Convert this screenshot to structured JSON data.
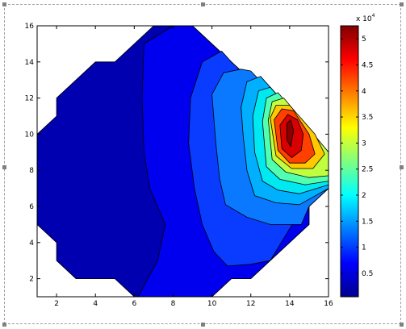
{
  "chart_data": {
    "type": "contourf",
    "title": "",
    "xlabel": "",
    "ylabel": "",
    "xlim": [
      1,
      16
    ],
    "ylim": [
      1,
      16
    ],
    "x_ticks": [
      2,
      4,
      6,
      8,
      10,
      12,
      14,
      16
    ],
    "y_ticks": [
      2,
      4,
      6,
      8,
      10,
      12,
      14,
      16
    ],
    "colormap": "jet",
    "colorbar": {
      "multiplier_label": "x 10",
      "multiplier_exponent": "4",
      "ticks": [
        0.5,
        1,
        1.5,
        2,
        2.5,
        3,
        3.5,
        4,
        4.5,
        5
      ],
      "range": [
        0.05,
        5.25
      ]
    },
    "domain_outline": [
      [
        1,
        10
      ],
      [
        2,
        11
      ],
      [
        2,
        12
      ],
      [
        4,
        14
      ],
      [
        5,
        14
      ],
      [
        7,
        16
      ],
      [
        9,
        16
      ],
      [
        10,
        15
      ],
      [
        11,
        14
      ],
      [
        16,
        9
      ],
      [
        16,
        7
      ],
      [
        15,
        6
      ],
      [
        15,
        5
      ],
      [
        12,
        2
      ],
      [
        11,
        2
      ],
      [
        10,
        1
      ],
      [
        6,
        1
      ],
      [
        5,
        2
      ],
      [
        3,
        2
      ],
      [
        2,
        3
      ],
      [
        2,
        4
      ],
      [
        1,
        5
      ]
    ],
    "contours": [
      {
        "level": 0.1,
        "color": "#0000b0",
        "poly": [
          [
            1,
            10
          ],
          [
            2,
            11
          ],
          [
            2,
            12
          ],
          [
            4,
            14
          ],
          [
            5,
            14
          ],
          [
            7,
            16
          ],
          [
            9,
            16
          ],
          [
            10,
            15
          ],
          [
            11,
            14
          ],
          [
            16,
            9
          ],
          [
            16,
            7
          ],
          [
            15,
            6
          ],
          [
            15,
            5
          ],
          [
            12,
            2
          ],
          [
            11,
            2
          ],
          [
            10,
            1
          ],
          [
            6,
            1
          ],
          [
            5,
            2
          ],
          [
            3,
            2
          ],
          [
            2,
            3
          ],
          [
            2,
            4
          ],
          [
            1,
            5
          ]
        ]
      },
      {
        "level": 0.5,
        "color": "#0000ee",
        "poly": [
          [
            6.5,
            15
          ],
          [
            8,
            16
          ],
          [
            9,
            16
          ],
          [
            10,
            15
          ],
          [
            11,
            14
          ],
          [
            16,
            9
          ],
          [
            16,
            7
          ],
          [
            15,
            6
          ],
          [
            15,
            5
          ],
          [
            12,
            2
          ],
          [
            11,
            2
          ],
          [
            10,
            1
          ],
          [
            6.2,
            1
          ],
          [
            7.2,
            3
          ],
          [
            7.6,
            5
          ],
          [
            6.8,
            7
          ],
          [
            6.5,
            9
          ],
          [
            6.4,
            12
          ]
        ]
      },
      {
        "level": 1.0,
        "color": "#0a3cff",
        "poly": [
          [
            8.9,
            12
          ],
          [
            9.5,
            14
          ],
          [
            10.5,
            14.6
          ],
          [
            11,
            14
          ],
          [
            16,
            9
          ],
          [
            16,
            7
          ],
          [
            15,
            6
          ],
          [
            14.3,
            5.3
          ],
          [
            13,
            3
          ],
          [
            12,
            2.8
          ],
          [
            10.8,
            2.7
          ],
          [
            10.1,
            3.5
          ],
          [
            9.5,
            5
          ],
          [
            9.1,
            7
          ],
          [
            8.8,
            9.5
          ]
        ]
      },
      {
        "level": 1.5,
        "color": "#0a78ff",
        "poly": [
          [
            10,
            12.2
          ],
          [
            10.6,
            13.4
          ],
          [
            11.5,
            13.6
          ],
          [
            12,
            13.5
          ],
          [
            16,
            9
          ],
          [
            16,
            7
          ],
          [
            15,
            6
          ],
          [
            14.6,
            5
          ],
          [
            13,
            5
          ],
          [
            11.8,
            5.4
          ],
          [
            10.7,
            6.1
          ],
          [
            10.4,
            7.5
          ],
          [
            10.2,
            9.5
          ]
        ]
      },
      {
        "level": 2.0,
        "color": "#00b0ff",
        "poly": [
          [
            11.5,
            11.5
          ],
          [
            11.8,
            12.9
          ],
          [
            12.5,
            13.2
          ],
          [
            16,
            9
          ],
          [
            16,
            7
          ],
          [
            14.5,
            6.1
          ],
          [
            13.3,
            6.2
          ],
          [
            12.2,
            6.6
          ],
          [
            11.8,
            8
          ],
          [
            11.6,
            10
          ]
        ]
      },
      {
        "level": 2.5,
        "color": "#00e8f0",
        "poly": [
          [
            12.1,
            11
          ],
          [
            12.4,
            12.4
          ],
          [
            13,
            12.6
          ],
          [
            16,
            9
          ],
          [
            16,
            7.2
          ],
          [
            14.5,
            6.7
          ],
          [
            13.4,
            6.9
          ],
          [
            12.6,
            7.4
          ],
          [
            12.2,
            9
          ]
        ]
      },
      {
        "level": 3.0,
        "color": "#50ffb0",
        "poly": [
          [
            12.6,
            10.7
          ],
          [
            12.8,
            12
          ],
          [
            13.4,
            12.3
          ],
          [
            16,
            9
          ],
          [
            16,
            7.4
          ],
          [
            14.8,
            7.2
          ],
          [
            13.5,
            7.5
          ],
          [
            12.8,
            8.2
          ]
        ]
      },
      {
        "level": 3.5,
        "color": "#c0ff40",
        "poly": [
          [
            12.9,
            10.8
          ],
          [
            13.1,
            11.8
          ],
          [
            13.7,
            12
          ],
          [
            16,
            9
          ],
          [
            16,
            7.7
          ],
          [
            15,
            7.6
          ],
          [
            13.8,
            7.9
          ],
          [
            13.1,
            8.6
          ]
        ]
      },
      {
        "level": 4.0,
        "color": "#ffc800",
        "poly": [
          [
            13,
            10.9
          ],
          [
            13.3,
            11.6
          ],
          [
            14,
            11.6
          ],
          [
            15.3,
            10
          ],
          [
            15.8,
            8.9
          ],
          [
            15.2,
            8.1
          ],
          [
            14.1,
            8.1
          ],
          [
            13.3,
            8.8
          ]
        ]
      },
      {
        "level": 4.5,
        "color": "#ff4000",
        "poly": [
          [
            13.2,
            10.8
          ],
          [
            13.6,
            11.4
          ],
          [
            14.2,
            11.3
          ],
          [
            15,
            10
          ],
          [
            15.3,
            8.9
          ],
          [
            14.8,
            8.4
          ],
          [
            14,
            8.4
          ],
          [
            13.4,
            9.1
          ]
        ]
      },
      {
        "level": 5.0,
        "color": "#d80000",
        "poly": [
          [
            13.5,
            10.5
          ],
          [
            13.9,
            11.1
          ],
          [
            14.4,
            10.8
          ],
          [
            14.7,
            10
          ],
          [
            14.6,
            9.1
          ],
          [
            14.1,
            8.7
          ],
          [
            13.6,
            9.2
          ]
        ]
      },
      {
        "level": 5.2,
        "color": "#8a0000",
        "poly": [
          [
            13.85,
            10.6
          ],
          [
            14.05,
            10.8
          ],
          [
            14.2,
            10.2
          ],
          [
            14.05,
            9.3
          ],
          [
            13.85,
            9.7
          ]
        ]
      }
    ]
  }
}
